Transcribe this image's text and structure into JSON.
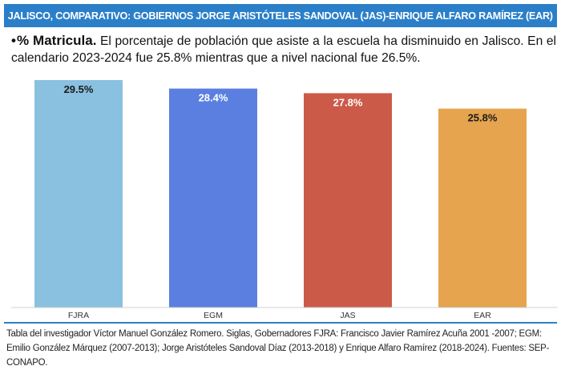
{
  "header": {
    "title": "JALISCO, COMPARATIVO: GOBIERNOS JORGE ARISTÓTELES SANDOVAL (JAS)-ENRIQUE ALFARO RAMÍREZ (EAR)"
  },
  "intro": {
    "lead": "% Matricula.",
    "text": "El porcentaje de población que asiste a la escuela ha disminuido en Jalisco. En el calendario 2023-2024 fue 25.8% mientras que a nivel nacional fue 26.5%."
  },
  "chart_data": {
    "type": "bar",
    "categories": [
      "FJRA",
      "EGM",
      "JAS",
      "EAR"
    ],
    "values": [
      29.5,
      28.4,
      27.8,
      25.8
    ],
    "data_labels": [
      "29.5%",
      "28.4%",
      "27.8%",
      "25.8%"
    ],
    "colors": [
      "#8ac0e0",
      "#5b7fe0",
      "#cc5a48",
      "#e5a44d"
    ],
    "label_colors": [
      "#1a1a1a",
      "#ffffff",
      "#ffffff",
      "#1a1a1a"
    ],
    "ylim": [
      0,
      30
    ],
    "title": "",
    "xlabel": "",
    "ylabel": "",
    "grid": false
  },
  "footer": {
    "note": "Tabla del investigador Víctor Manuel González Romero. Siglas, Gobernadores FJRA: Francisco Javier Ramírez Acuña 2001 -2007; EGM: Emilio González Márquez (2007-2013); Jorge Aristóteles Sandoval Díaz (2013-2018) y Enrique Alfaro Ramírez (2018-2024). Fuentes: SEP-CONAPO."
  }
}
